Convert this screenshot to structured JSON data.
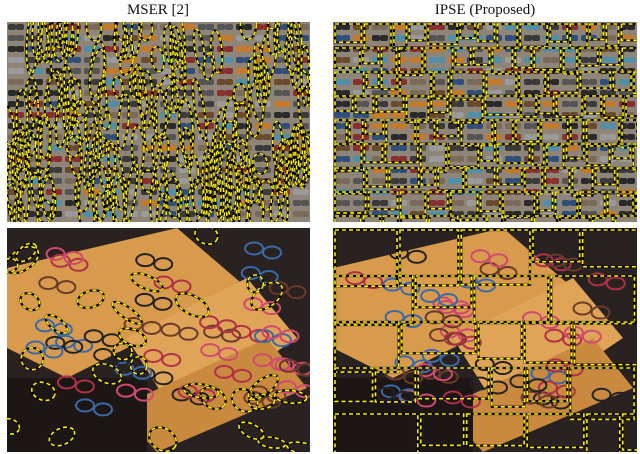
{
  "columns": [
    {
      "title": "MSER [2]"
    },
    {
      "title": "IPSE (Proposed)"
    }
  ]
}
